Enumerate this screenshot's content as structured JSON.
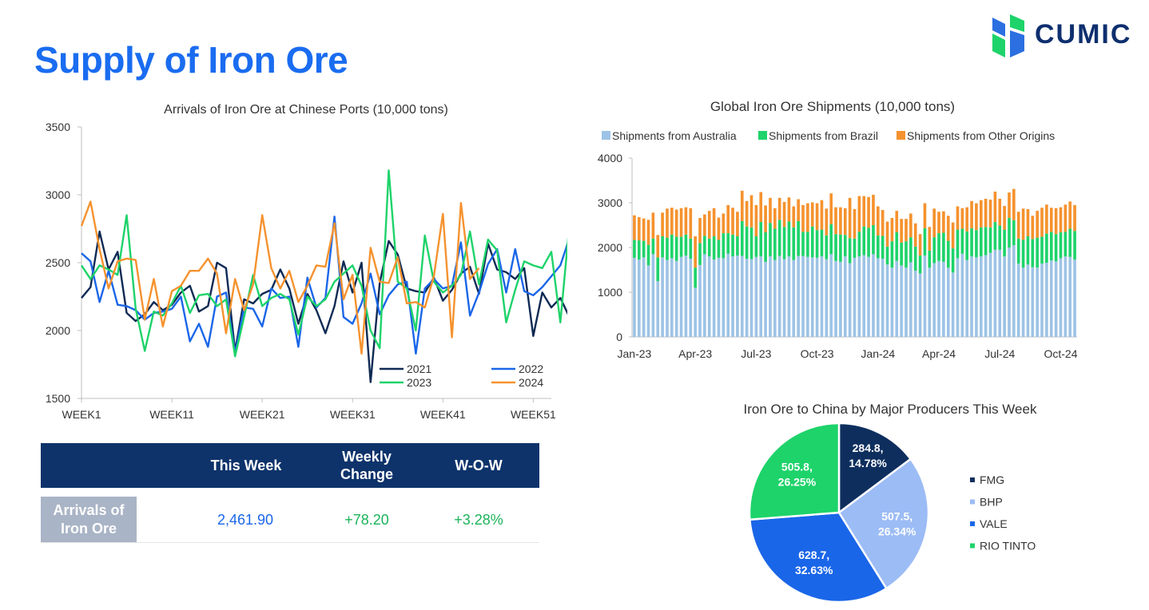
{
  "header": {
    "title": "Supply of Iron Ore",
    "logo_text": "CUMIC"
  },
  "chart_data": [
    {
      "type": "line",
      "title": "Arrivals of Iron Ore at Chinese Ports (10,000 tons)",
      "ylim": [
        1500,
        3500
      ],
      "yticks": [
        1500,
        2000,
        2500,
        3000,
        3500
      ],
      "x_tick_labels": [
        "WEEK1",
        "WEEK11",
        "WEEK21",
        "WEEK31",
        "WEEK41",
        "WEEK51"
      ],
      "x_tick_weeks": [
        1,
        11,
        21,
        31,
        41,
        51
      ],
      "x_range": [
        1,
        53
      ],
      "legend": "bottom-right",
      "series": [
        {
          "name": "2021",
          "color": "#0e2a54",
          "start_week": 1,
          "values": [
            2240,
            2320,
            2730,
            2450,
            2580,
            2130,
            2070,
            2120,
            2210,
            2150,
            2190,
            2280,
            2330,
            2140,
            2180,
            2500,
            2460,
            1850,
            2230,
            2200,
            2270,
            2300,
            2450,
            2310,
            2050,
            2270,
            2150,
            1980,
            2180,
            2510,
            2280,
            2500,
            1620,
            2350,
            2660,
            2560,
            2310,
            2290,
            2280,
            2390,
            2220,
            2300,
            2420,
            2470,
            2270,
            2640,
            2450,
            2430,
            2380,
            2460,
            1960,
            2280,
            2170,
            2240,
            2100
          ]
        },
        {
          "name": "2022",
          "color": "#1a66e8",
          "start_week": 1,
          "values": [
            2570,
            2510,
            2210,
            2440,
            2190,
            2180,
            2150,
            2080,
            2130,
            2140,
            2160,
            2250,
            1920,
            2050,
            1880,
            2250,
            2280,
            1830,
            2170,
            2160,
            2030,
            2310,
            2240,
            2250,
            1880,
            2390,
            2170,
            2240,
            2840,
            2100,
            2050,
            2200,
            2420,
            2120,
            2260,
            2340,
            2360,
            1830,
            2310,
            2380,
            2310,
            2330,
            2650,
            2110,
            2280,
            2490,
            2600,
            2280,
            2600,
            2290,
            2260,
            2320,
            2400,
            2480,
            2680
          ]
        },
        {
          "name": "2023",
          "color": "#1ed36a",
          "start_week": 1,
          "values": [
            2480,
            2380,
            2480,
            2450,
            2410,
            2850,
            2160,
            1850,
            2140,
            2110,
            2200,
            2330,
            2130,
            2260,
            2270,
            2180,
            2230,
            1810,
            2100,
            2410,
            2180,
            2240,
            2270,
            2230,
            1970,
            2250,
            2180,
            2230,
            2360,
            2420,
            2480,
            2330,
            2000,
            1870,
            3180,
            2360,
            2310,
            2000,
            2700,
            2360,
            2280,
            2330,
            2410,
            2730,
            2340,
            2670,
            2590,
            2060,
            2300,
            2510,
            2480,
            2460,
            2580,
            2060,
            2780
          ]
        },
        {
          "name": "2024",
          "color": "#f5922e",
          "start_week": 1,
          "values": [
            2770,
            2950,
            2600,
            2310,
            2510,
            2530,
            2520,
            2080,
            2380,
            2030,
            2290,
            2330,
            2440,
            2440,
            2530,
            2420,
            1980,
            2380,
            2150,
            2340,
            2850,
            2460,
            2310,
            2440,
            2210,
            2330,
            2480,
            2470,
            2790,
            2230,
            2410,
            1830,
            2610,
            2360,
            2350,
            2540,
            2200,
            2210,
            2170,
            2400,
            2860,
            1950,
            2940,
            2380,
            2460
          ]
        }
      ]
    },
    {
      "type": "bar",
      "stacked": true,
      "title": "Global Iron Ore Shipments (10,000 tons)",
      "ylim": [
        0,
        4000
      ],
      "yticks": [
        0,
        1000,
        2000,
        3000,
        4000
      ],
      "x_tick_labels": [
        "Jan-23",
        "Apr-23",
        "Jul-23",
        "Oct-23",
        "Jan-24",
        "Apr-24",
        "Jul-24",
        "Oct-24"
      ],
      "x_tick_index": [
        0,
        13,
        26,
        39,
        52,
        65,
        78,
        91
      ],
      "legend": "top",
      "categories_count": 95,
      "series": [
        {
          "name": "Shipments from Australia",
          "color": "#9dc3e6",
          "values": [
            1770,
            1730,
            1780,
            1600,
            1850,
            1250,
            1780,
            1720,
            1760,
            1700,
            1790,
            1820,
            1750,
            1100,
            1610,
            1850,
            1800,
            1730,
            1770,
            1760,
            1860,
            1800,
            1820,
            1810,
            1750,
            1740,
            1790,
            1800,
            1680,
            1800,
            1720,
            1810,
            1740,
            1800,
            1720,
            1810,
            1810,
            1790,
            1780,
            1770,
            1800,
            1740,
            1850,
            1700,
            1680,
            1800,
            1650,
            1770,
            1800,
            1830,
            1790,
            1850,
            1760,
            1750,
            1620,
            1550,
            1700,
            1600,
            1550,
            1670,
            1480,
            1420,
            1820,
            1550,
            1650,
            1700,
            1680,
            1550,
            1440,
            1760,
            1860,
            1720,
            1800,
            1780,
            1800,
            1830,
            1880,
            1950,
            1950,
            1800,
            2000,
            2050,
            1640,
            1550,
            1620,
            1560,
            1550,
            1640,
            1660,
            1710,
            1690,
            1760,
            1800,
            1790,
            1730
          ]
        },
        {
          "name": "Shipments from Brazil",
          "color": "#1ed36a",
          "values": [
            400,
            430,
            370,
            460,
            350,
            530,
            470,
            500,
            530,
            540,
            450,
            470,
            450,
            450,
            490,
            410,
            400,
            520,
            400,
            560,
            460,
            490,
            430,
            780,
            720,
            710,
            460,
            770,
            660,
            750,
            700,
            810,
            720,
            780,
            730,
            780,
            540,
            560,
            690,
            620,
            600,
            530,
            670,
            600,
            610,
            480,
            560,
            430,
            550,
            640,
            650,
            650,
            510,
            510,
            400,
            590,
            640,
            510,
            590,
            560,
            540,
            400,
            610,
            380,
            580,
            620,
            650,
            600,
            540,
            640,
            560,
            640,
            630,
            610,
            650,
            630,
            570,
            620,
            540,
            600,
            660,
            560,
            560,
            620,
            630,
            630,
            670,
            600,
            650,
            640,
            610,
            580,
            550,
            630,
            640
          ]
        },
        {
          "name": "Shipments from Other Origins",
          "color": "#f5922e",
          "values": [
            550,
            520,
            500,
            560,
            580,
            500,
            530,
            650,
            600,
            610,
            640,
            610,
            680,
            700,
            560,
            480,
            620,
            630,
            500,
            440,
            630,
            600,
            550,
            680,
            570,
            720,
            700,
            670,
            600,
            560,
            460,
            490,
            560,
            540,
            470,
            490,
            600,
            640,
            540,
            600,
            660,
            600,
            690,
            600,
            610,
            600,
            900,
            660,
            800,
            680,
            690,
            680,
            650,
            580,
            560,
            520,
            480,
            530,
            500,
            530,
            520,
            480,
            560,
            530,
            640,
            480,
            480,
            560,
            580,
            520,
            460,
            540,
            610,
            600,
            610,
            630,
            620,
            680,
            600,
            530,
            570,
            700,
            600,
            700,
            610,
            520,
            600,
            650,
            650,
            540,
            580,
            560,
            610,
            610,
            580
          ]
        }
      ]
    },
    {
      "type": "pie",
      "title": "Iron Ore to China by Major Producers This Week",
      "legend": "right",
      "slices": [
        {
          "name": "FMG",
          "value": 284.8,
          "percent": "14.78%",
          "label": "284.8,",
          "color": "#0e2f5e"
        },
        {
          "name": "BHP",
          "value": 507.5,
          "percent": "26.34%",
          "label": "507.5,",
          "color": "#9cbcf5"
        },
        {
          "name": "VALE",
          "value": 628.7,
          "percent": "32.63%",
          "label": "628.7,",
          "color": "#1a66e8"
        },
        {
          "name": "RIO TINTO",
          "value": 505.8,
          "percent": "26.25%",
          "label": "505.8,",
          "color": "#1ed36a"
        }
      ]
    }
  ],
  "summary_table": {
    "headers": [
      "This Week",
      "Weekly\nChange",
      "W-O-W"
    ],
    "row_label": "Arrivals of\nIron Ore",
    "this_week": "2,461.90",
    "weekly_change": "+78.20",
    "wow": "+3.28%",
    "this_week_color": "#1a66e8",
    "change_color": "#1cb35a"
  }
}
